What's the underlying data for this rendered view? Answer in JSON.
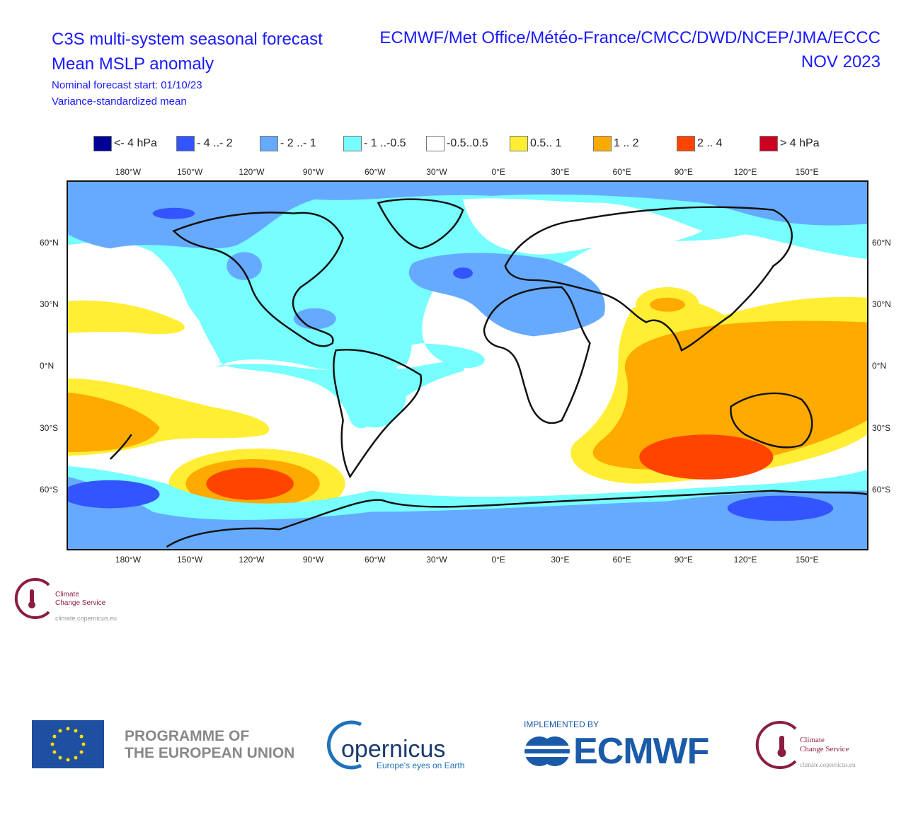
{
  "header": {
    "title": "C3S multi-system seasonal forecast",
    "subtitle": "Mean MSLP anomaly",
    "start": "Nominal forecast start: 01/10/23",
    "method": "Variance-standardized mean",
    "centres": "ECMWF/Met Office/Météo-France/CMCC/DWD/NCEP/JMA/ECCC",
    "period": "NOV 2023"
  },
  "legend": [
    {
      "label": "<- 4 hPa",
      "color": "#000096"
    },
    {
      "label": "- 4 ..- 2",
      "color": "#3355ff"
    },
    {
      "label": "- 2 ..- 1",
      "color": "#66aaff"
    },
    {
      "label": "- 1 ..-0.5",
      "color": "#77ffff"
    },
    {
      "label": "-0.5..0.5",
      "color": "#ffffff"
    },
    {
      "label": "0.5.. 1",
      "color": "#ffee33"
    },
    {
      "label": "1 .. 2",
      "color": "#ffaa00"
    },
    {
      "label": "2 .. 4",
      "color": "#ff4400"
    },
    {
      "label": "> 4 hPa",
      "color": "#cc0022"
    }
  ],
  "lon_labels": [
    "180°W",
    "150°W",
    "120°W",
    "90°W",
    "60°W",
    "30°W",
    "0°E",
    "30°E",
    "60°E",
    "90°E",
    "120°E",
    "150°E"
  ],
  "lat_labels": [
    "60°N",
    "30°N",
    "0°N",
    "30°S",
    "60°S"
  ],
  "small_logo": {
    "line1": "Climate",
    "line2": "Change Service",
    "url": "climate.copernicus.eu"
  },
  "footer": {
    "eu_line1": "PROGRAMME OF",
    "eu_line2": "THE EUROPEAN UNION",
    "copernicus": "opernicus",
    "copernicus_tag": "Europe's eyes on Earth",
    "implemented": "IMPLEMENTED BY",
    "ecmwf": "ECMWF",
    "c3s_line1": "Climate",
    "c3s_line2": "Change Service",
    "c3s_url": "climate.copernicus.eu"
  }
}
